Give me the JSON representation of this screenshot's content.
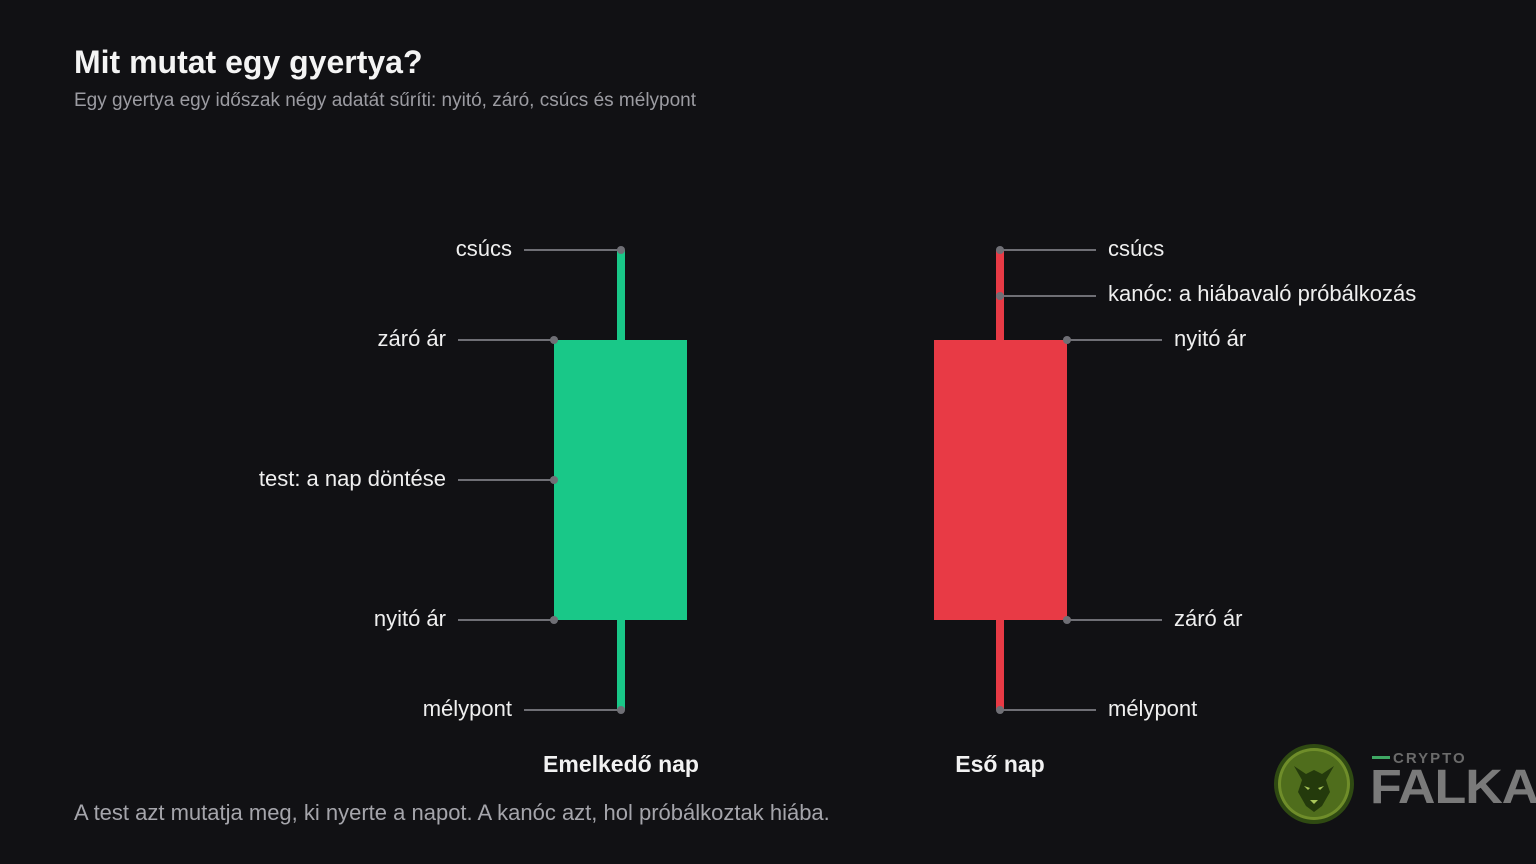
{
  "title": "Mit mutat egy gyertya?",
  "subtitle": "Egy gyertya egy időszak négy adatát sűríti: nyitó, záró, csúcs és mélypont",
  "footer": "A test azt mutatja meg, ki nyerte a napot. A kanóc azt, hol próbálkoztak hiába.",
  "colors": {
    "bullish": "#19c888",
    "bearish": "#e83a45",
    "leader": "#6f6f75",
    "background": "#111114"
  },
  "bullish": {
    "caption": "Emelkedő nap",
    "labels": {
      "high": "csúcs",
      "close": "záró ár",
      "body": "test: a nap döntése",
      "open": "nyitó ár",
      "low": "mélypont"
    }
  },
  "bearish": {
    "caption": "Eső nap",
    "labels": {
      "high": "csúcs",
      "wick": "kanóc: a hiábavaló próbálkozás",
      "open": "nyitó ár",
      "close": "záró ár",
      "low": "mélypont"
    }
  },
  "logo": {
    "top": "CRYPTO",
    "main": "FALKA",
    "icon": "wolf-head-icon"
  }
}
